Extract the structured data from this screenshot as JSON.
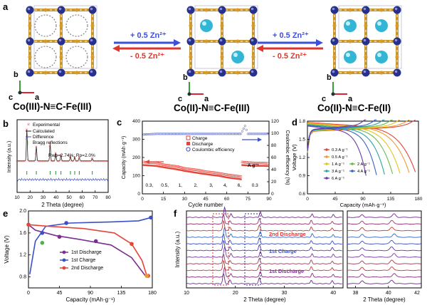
{
  "panel_a": {
    "label": "a",
    "arrow_top_text": "+ 0.5 Zn²⁺",
    "arrow_bottom_text": "- 0.5 Zn²⁺",
    "axis_b": "b",
    "axis_c": "c",
    "axis_a": "a",
    "structures": [
      {
        "formula": "Co(III)-N≡C-Fe(III)",
        "color": "#111111"
      },
      {
        "formula": "Co(II)-N≡C-Fe(III)",
        "color": "#2a6fb8"
      },
      {
        "formula": "Co(II)-N≡C-Fe(II)",
        "color": "#2a6fb8"
      }
    ]
  },
  "colors": {
    "frame_gold": "#c9962e",
    "node_blue": "#27308a",
    "zn_cyan": "#33b6d6",
    "charge_red": "#e4453a",
    "discharge_purple": "#7a2f8f",
    "ce_blue": "#3b4fc6",
    "arrow_blue": "#3b4fd8",
    "arrow_red": "#e0352b"
  },
  "chart_data": [
    {
      "panel": "b",
      "type": "line",
      "xlabel": "2 Theta (degree)",
      "ylabel": "Intensity (a.u.)",
      "xlim": [
        10,
        80
      ],
      "xticks": [
        10,
        20,
        30,
        40,
        50,
        60,
        70,
        80
      ],
      "legend": [
        "Experimental",
        "Calculated",
        "Difference",
        "Bragg reflections"
      ],
      "annotation": "Rwp=2.74%; Rp=2.0%",
      "peaks": [
        [
          17.5,
          1.0
        ],
        [
          24.8,
          0.45
        ],
        [
          35.4,
          0.55
        ],
        [
          39.7,
          0.25
        ],
        [
          43.7,
          0.18
        ],
        [
          51.0,
          0.14
        ],
        [
          54.3,
          0.12
        ],
        [
          57.8,
          0.1
        ],
        [
          67.8,
          0.08
        ]
      ]
    },
    {
      "panel": "c",
      "type": "scatter",
      "xlabel": "Cycle number",
      "ylabel": "Capacity (mAh·g⁻¹)",
      "y2label": "Coulombic efficiency (%)",
      "xlim": [
        0,
        90
      ],
      "xticks": [
        0,
        15,
        30,
        45,
        60,
        75,
        90
      ],
      "ylim": [
        0,
        400
      ],
      "yticks": [
        0,
        100,
        200,
        300,
        400
      ],
      "y2lim": [
        0,
        120
      ],
      "y2ticks": [
        0,
        20,
        40,
        60,
        80,
        100,
        120
      ],
      "rate_labels": [
        "0.3,",
        "0.5,",
        "1,",
        "2,",
        "3,",
        "4,",
        "6,",
        "0.3"
      ],
      "rate_unit": "A g⁻¹",
      "series": [
        {
          "name": "Charge",
          "values": [
            [
              1,
              175
            ],
            [
              5,
              172
            ],
            [
              10,
              170
            ],
            [
              15,
              160
            ],
            [
              20,
              155
            ],
            [
              25,
              150
            ],
            [
              30,
              140
            ],
            [
              35,
              135
            ],
            [
              40,
              130
            ],
            [
              45,
              122
            ],
            [
              50,
              118
            ],
            [
              55,
              112
            ],
            [
              60,
              105
            ],
            [
              65,
              100
            ],
            [
              70,
              95
            ],
            [
              71,
              175
            ],
            [
              75,
              172
            ],
            [
              80,
              170
            ],
            [
              85,
              170
            ],
            [
              89,
              168
            ]
          ]
        },
        {
          "name": "Discharge",
          "values": [
            [
              1,
              170
            ],
            [
              5,
              168
            ],
            [
              10,
              165
            ],
            [
              15,
              158
            ],
            [
              20,
              152
            ],
            [
              25,
              146
            ],
            [
              30,
              138
            ],
            [
              35,
              132
            ],
            [
              40,
              126
            ],
            [
              45,
              120
            ],
            [
              50,
              115
            ],
            [
              55,
              110
            ],
            [
              60,
              102
            ],
            [
              65,
              97
            ],
            [
              70,
              92
            ],
            [
              71,
              170
            ],
            [
              75,
              168
            ],
            [
              80,
              166
            ],
            [
              85,
              166
            ],
            [
              89,
              165
            ]
          ]
        },
        {
          "name": "Coulombic efficiency",
          "values": [
            [
              1,
              98
            ],
            [
              10,
              99
            ],
            [
              20,
              99
            ],
            [
              30,
              99
            ],
            [
              40,
              99
            ],
            [
              50,
              99
            ],
            [
              60,
              99
            ],
            [
              70,
              99
            ],
            [
              73,
              112
            ],
            [
              75,
              99
            ],
            [
              89,
              99
            ]
          ]
        }
      ]
    },
    {
      "panel": "d",
      "type": "line",
      "xlabel": "Capacity (mAh·g⁻¹)",
      "ylabel": "Voltage (V)",
      "xlim": [
        0,
        180
      ],
      "xticks": [
        0,
        45,
        90,
        135,
        180
      ],
      "ylim": [
        0.6,
        1.8
      ],
      "yticks": [
        0.6,
        0.9,
        1.2,
        1.5,
        1.8
      ],
      "series": [
        {
          "name": "0.3 A g⁻¹",
          "cap": 175
        },
        {
          "name": "0.5 A g⁻¹",
          "cap": 165
        },
        {
          "name": "1 A g⁻¹",
          "cap": 150
        },
        {
          "name": "2 A g⁻¹",
          "cap": 138
        },
        {
          "name": "3 A g⁻¹",
          "cap": 125
        },
        {
          "name": "4 A g⁻¹",
          "cap": 112
        },
        {
          "name": "6 A g⁻¹",
          "cap": 95
        }
      ]
    },
    {
      "panel": "e",
      "type": "line",
      "xlabel": "Capacity (mAh·g⁻¹)",
      "ylabel": "Voltage (V)",
      "xlim": [
        0,
        180
      ],
      "xticks": [
        0,
        45,
        90,
        135,
        180
      ],
      "ylim": [
        0.6,
        2.0
      ],
      "yticks": [
        0.8,
        1.2,
        1.6,
        2.0
      ],
      "series": [
        {
          "name": "1st Discharge",
          "values": [
            [
              0,
              1.75
            ],
            [
              10,
              1.65
            ],
            [
              40,
              1.55
            ],
            [
              75,
              1.48
            ],
            [
              120,
              1.38
            ],
            [
              150,
              1.15
            ],
            [
              170,
              0.82
            ]
          ]
        },
        {
          "name": "1st Charge",
          "values": [
            [
              2,
              0.85
            ],
            [
              10,
              1.45
            ],
            [
              25,
              1.72
            ],
            [
              60,
              1.78
            ],
            [
              120,
              1.8
            ],
            [
              160,
              1.82
            ],
            [
              178,
              1.88
            ]
          ]
        },
        {
          "name": "2nd Discharge",
          "values": [
            [
              0,
              1.75
            ],
            [
              30,
              1.72
            ],
            [
              80,
              1.68
            ],
            [
              125,
              1.6
            ],
            [
              150,
              1.4
            ],
            [
              165,
              1.1
            ],
            [
              172,
              0.82
            ]
          ]
        }
      ]
    },
    {
      "panel": "f",
      "type": "line",
      "xlabel": "2 Theta (degree)",
      "ylabel": "Intensity (a.u.)",
      "xlim": [
        10,
        42
      ],
      "xticks_left": [
        10,
        20,
        30,
        40
      ],
      "xticks_right": [
        38,
        40,
        42
      ],
      "annotations": [
        "2nd Discharge",
        "1st Charge",
        "1st Discharge"
      ]
    }
  ]
}
